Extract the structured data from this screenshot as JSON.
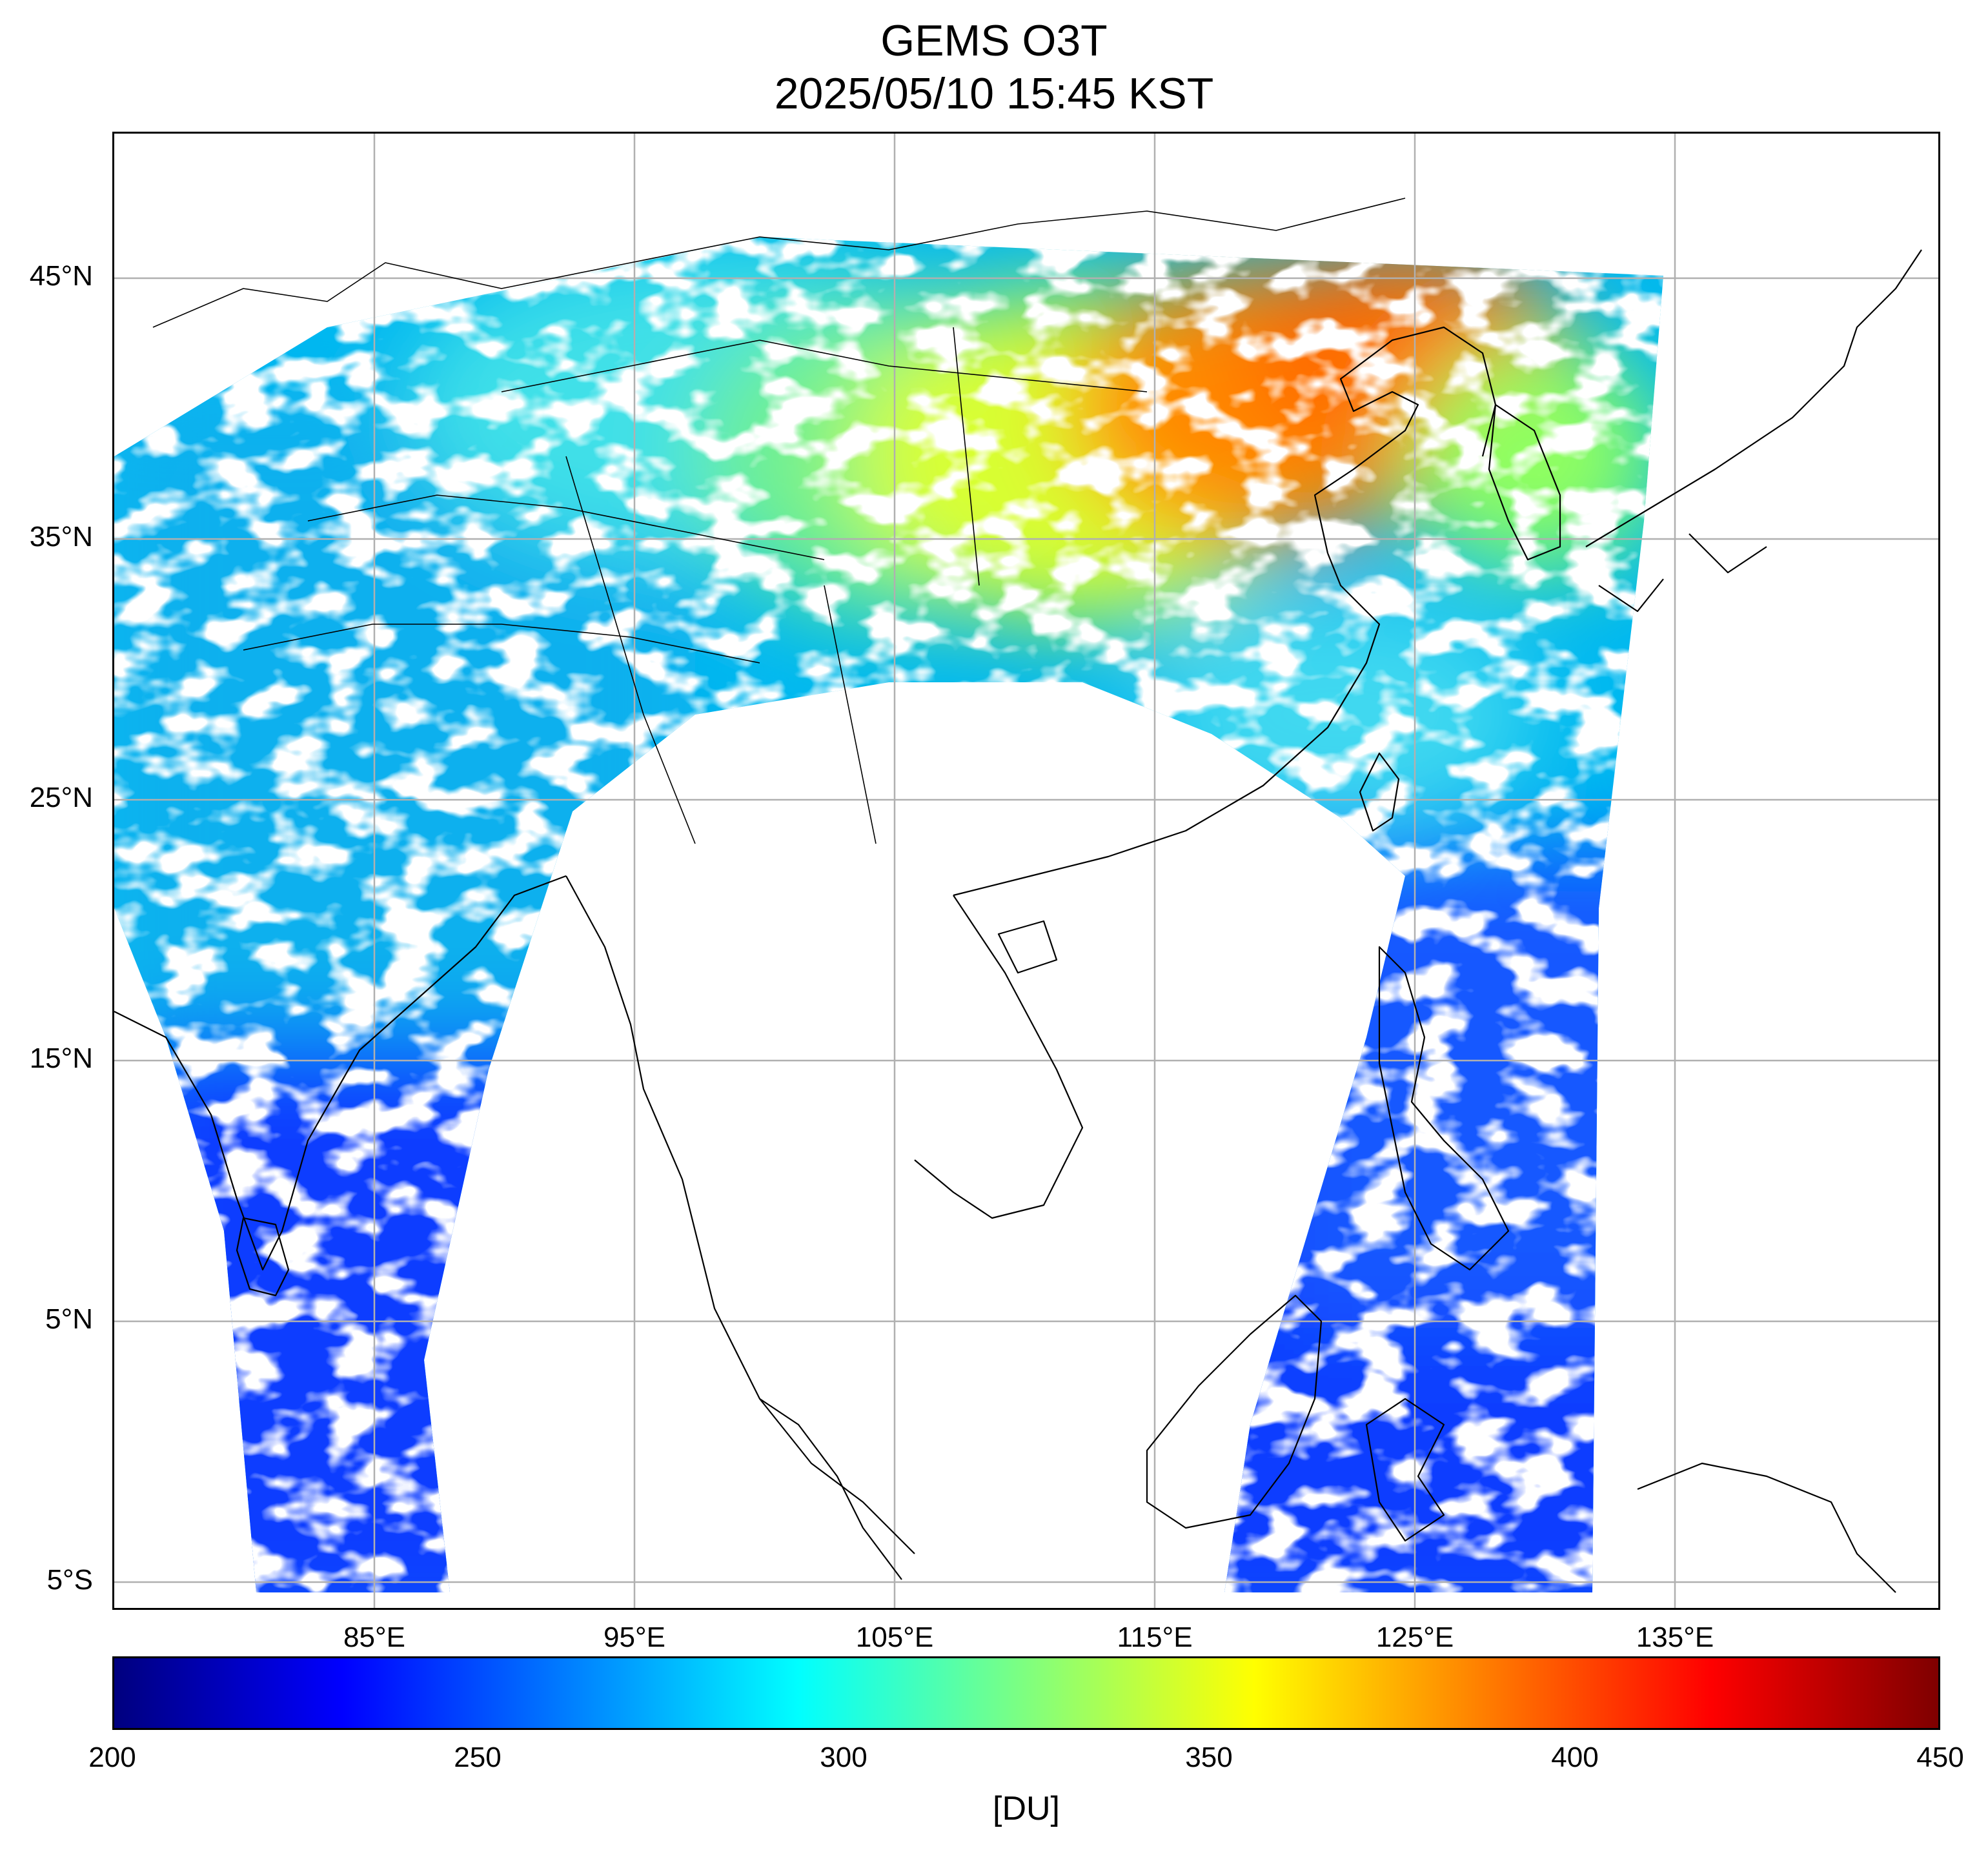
{
  "title": {
    "product": "GEMS O3T",
    "timestamp": "2025/05/10 15:45 KST"
  },
  "map": {
    "lat_labels": [
      "45°N",
      "35°N",
      "25°N",
      "15°N",
      "5°N",
      "5°S"
    ],
    "lon_labels": [
      "85°E",
      "95°E",
      "105°E",
      "115°E",
      "125°E",
      "135°E"
    ],
    "gridlines": true,
    "gridline_color": "#b0b0b0",
    "coastline_color": "#000000",
    "no_data_color": "#ffffff",
    "field": "total column ozone",
    "spatial_pattern": {
      "north_china_korea": "380–400 DU (orange-red)",
      "mongolia_inner_china": "330–360 DU (green-yellow)",
      "tibet_india": "270–300 DU (cyan)",
      "tropics": "230–260 DU (blue)"
    }
  },
  "colorbar": {
    "ticks": [
      "200",
      "250",
      "300",
      "350",
      "400",
      "450"
    ],
    "vmin": 200,
    "vmax": 450,
    "unit": "[DU]",
    "colormap": "jet",
    "stops": [
      "#00007f",
      "#0000ff",
      "#007fff",
      "#00ffff",
      "#7fff7f",
      "#ffff00",
      "#ff7f00",
      "#ff0000",
      "#7f0000"
    ]
  }
}
